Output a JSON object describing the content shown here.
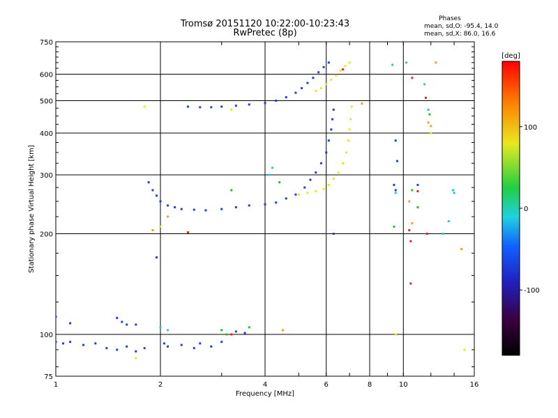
{
  "header": {
    "title": "Tromsø 20151120 10:22:00-10:23:43",
    "subtitle": "RwPretec (8p)",
    "phase_heading": "Phases",
    "phase_o": "mean, sd,O: -95.4, 14.0",
    "phase_x": "mean, sd,X:  86.0, 16.6"
  },
  "colors": {
    "blue": "#1f3ce8",
    "yellow": "#e8e81a",
    "cyan": "#22c8e0",
    "green": "#22c022",
    "red": "#e82020",
    "orange": "#f0a020"
  },
  "chart_data": {
    "type": "scatter",
    "xlabel": "Frequency [MHz]",
    "ylabel": "Stationary phase Virtual Height [km]",
    "x_scale": "log",
    "y_scale": "log",
    "xlim": [
      1,
      16
    ],
    "ylim": [
      75,
      750
    ],
    "x_ticks": [
      1,
      2,
      4,
      6,
      8,
      10,
      16
    ],
    "y_ticks": [
      75,
      100,
      200,
      300,
      400,
      500,
      600,
      750
    ],
    "grid": true,
    "colorbar": {
      "label": "[deg]",
      "range": [
        -180,
        180
      ],
      "ticks": [
        100,
        0,
        -100
      ]
    },
    "series": [
      {
        "color": "blue",
        "points": [
          [
            1.0,
            95
          ],
          [
            1.05,
            94
          ],
          [
            1.1,
            95
          ],
          [
            1.2,
            93
          ],
          [
            1.3,
            94
          ],
          [
            1.4,
            91
          ],
          [
            1.5,
            90
          ],
          [
            1.6,
            92
          ],
          [
            1.7,
            89
          ],
          [
            1.8,
            91
          ],
          [
            2.05,
            94
          ],
          [
            2.1,
            92
          ],
          [
            2.3,
            93
          ],
          [
            2.5,
            91
          ],
          [
            2.6,
            94
          ],
          [
            2.8,
            92
          ],
          [
            3.0,
            95
          ],
          [
            1.0,
            113
          ],
          [
            1.1,
            108
          ],
          [
            1.5,
            112
          ],
          [
            1.55,
            109
          ],
          [
            1.6,
            107
          ],
          [
            1.7,
            107
          ],
          [
            3.3,
            102
          ],
          [
            3.5,
            101
          ],
          [
            1.85,
            285
          ],
          [
            1.9,
            270
          ],
          [
            1.95,
            260
          ],
          [
            2.0,
            250
          ],
          [
            2.1,
            243
          ],
          [
            2.2,
            240
          ],
          [
            2.3,
            237
          ],
          [
            2.5,
            236
          ],
          [
            2.7,
            235
          ],
          [
            3.0,
            237
          ],
          [
            3.3,
            240
          ],
          [
            3.6,
            243
          ],
          [
            4.0,
            245
          ],
          [
            4.3,
            248
          ],
          [
            4.6,
            255
          ],
          [
            4.9,
            262
          ],
          [
            5.2,
            275
          ],
          [
            5.4,
            290
          ],
          [
            5.6,
            305
          ],
          [
            5.8,
            325
          ],
          [
            6.0,
            350
          ],
          [
            6.1,
            380
          ],
          [
            6.2,
            410
          ],
          [
            6.25,
            440
          ],
          [
            6.3,
            470
          ],
          [
            2.4,
            480
          ],
          [
            2.6,
            478
          ],
          [
            2.8,
            478
          ],
          [
            3.0,
            480
          ],
          [
            3.3,
            483
          ],
          [
            3.6,
            487
          ],
          [
            4.0,
            492
          ],
          [
            4.3,
            500
          ],
          [
            4.6,
            512
          ],
          [
            4.9,
            528
          ],
          [
            5.1,
            545
          ],
          [
            5.3,
            565
          ],
          [
            5.5,
            585
          ],
          [
            5.7,
            608
          ],
          [
            5.9,
            630
          ],
          [
            6.1,
            650
          ],
          [
            9.5,
            380
          ],
          [
            9.6,
            330
          ],
          [
            9.4,
            280
          ],
          [
            9.5,
            270
          ],
          [
            1.95,
            170
          ],
          [
            11.0,
            280
          ],
          [
            6.3,
            200
          ]
        ]
      },
      {
        "color": "yellow",
        "points": [
          [
            5.0,
            262
          ],
          [
            5.3,
            265
          ],
          [
            5.6,
            268
          ],
          [
            5.9,
            272
          ],
          [
            6.1,
            280
          ],
          [
            6.3,
            292
          ],
          [
            6.5,
            305
          ],
          [
            6.7,
            325
          ],
          [
            6.85,
            350
          ],
          [
            6.95,
            380
          ],
          [
            7.0,
            410
          ],
          [
            7.05,
            440
          ],
          [
            7.1,
            480
          ],
          [
            5.6,
            535
          ],
          [
            5.8,
            545
          ],
          [
            6.0,
            560
          ],
          [
            6.2,
            578
          ],
          [
            6.4,
            595
          ],
          [
            6.6,
            615
          ],
          [
            6.8,
            635
          ],
          [
            7.0,
            650
          ],
          [
            1.8,
            480
          ],
          [
            3.2,
            470
          ],
          [
            9.5,
            100
          ],
          [
            1.7,
            85
          ],
          [
            2.0,
            210
          ],
          [
            15,
            90
          ],
          [
            12,
            400
          ]
        ]
      },
      {
        "color": "cyan",
        "points": [
          [
            4.2,
            315
          ],
          [
            4.1,
            300
          ],
          [
            2.0,
            105
          ],
          [
            2.1,
            103
          ],
          [
            9.3,
            640
          ],
          [
            10.2,
            650
          ],
          [
            14.0,
            265
          ],
          [
            13.5,
            218
          ],
          [
            13.0,
            200
          ],
          [
            9.5,
            265
          ],
          [
            11.8,
            470
          ],
          [
            13.9,
            270
          ],
          [
            11.5,
            560
          ]
        ]
      },
      {
        "color": "green",
        "points": [
          [
            3.2,
            270
          ],
          [
            3.0,
            103
          ],
          [
            3.1,
            100
          ],
          [
            3.6,
            105
          ],
          [
            4.4,
            285
          ],
          [
            10.6,
            270
          ],
          [
            11.9,
            455
          ],
          [
            9.4,
            210
          ],
          [
            11.0,
            240
          ]
        ]
      },
      {
        "color": "red",
        "points": [
          [
            2.4,
            202
          ],
          [
            3.2,
            100
          ],
          [
            6.7,
            620
          ],
          [
            10.5,
            190
          ],
          [
            10.5,
            142
          ],
          [
            10.6,
            585
          ],
          [
            11.0,
            268
          ],
          [
            11.7,
            200
          ],
          [
            10.4,
            205
          ],
          [
            11.6,
            510
          ]
        ]
      },
      {
        "color": "orange",
        "points": [
          [
            4.5,
            103
          ],
          [
            1.9,
            205
          ],
          [
            2.1,
            225
          ],
          [
            10.6,
            215
          ],
          [
            12.4,
            650
          ],
          [
            12.0,
            420
          ],
          [
            14.7,
            180
          ],
          [
            10.4,
            250
          ],
          [
            11.8,
            430
          ],
          [
            7.6,
            490
          ]
        ]
      }
    ]
  }
}
